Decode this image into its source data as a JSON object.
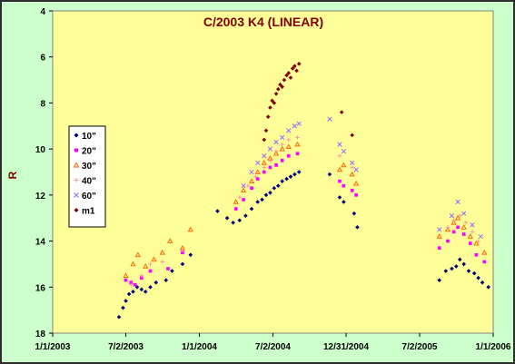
{
  "chart_data": {
    "type": "scatter",
    "title": "C/2003 K4 (LINEAR)",
    "ylabel": "R",
    "xlabel": "",
    "xlim": [
      "2003-01-01",
      "2006-01-01"
    ],
    "ylim": [
      4,
      18
    ],
    "y_inverted": true,
    "x_ticks": [
      {
        "date": "2003-01-01",
        "label": "1/1/2003"
      },
      {
        "date": "2003-07-02",
        "label": "7/2/2003"
      },
      {
        "date": "2004-01-01",
        "label": "1/1/2004"
      },
      {
        "date": "2004-07-02",
        "label": "7/2/2004"
      },
      {
        "date": "2004-12-31",
        "label": "12/31/2004"
      },
      {
        "date": "2005-07-02",
        "label": "7/2/2005"
      },
      {
        "date": "2006-01-01",
        "label": "1/1/2006"
      }
    ],
    "y_ticks": [
      "4",
      "6",
      "8",
      "10",
      "12",
      "14",
      "16",
      "18"
    ],
    "plot_background": "#ffff99",
    "legend_position": "left",
    "series": [
      {
        "name": "10\"",
        "marker": "diamond",
        "color": "#000080",
        "points": [
          [
            "2003-06-15",
            17.3
          ],
          [
            "2003-06-25",
            16.9
          ],
          [
            "2003-07-02",
            16.6
          ],
          [
            "2003-07-10",
            16.3
          ],
          [
            "2003-07-20",
            16.2
          ],
          [
            "2003-07-30",
            16.0
          ],
          [
            "2003-08-10",
            16.1
          ],
          [
            "2003-08-20",
            16.2
          ],
          [
            "2003-09-01",
            16.0
          ],
          [
            "2003-09-15",
            15.8
          ],
          [
            "2003-10-10",
            15.7
          ],
          [
            "2003-10-25",
            15.3
          ],
          [
            "2003-11-20",
            15.0
          ],
          [
            "2003-12-10",
            14.6
          ],
          [
            "2004-02-15",
            12.7
          ],
          [
            "2004-03-10",
            13.0
          ],
          [
            "2004-03-25",
            13.2
          ],
          [
            "2004-04-10",
            13.1
          ],
          [
            "2004-04-25",
            12.9
          ],
          [
            "2004-05-10",
            12.6
          ],
          [
            "2004-05-25",
            12.3
          ],
          [
            "2004-06-05",
            12.2
          ],
          [
            "2004-06-15",
            12.0
          ],
          [
            "2004-06-25",
            11.9
          ],
          [
            "2004-07-05",
            11.7
          ],
          [
            "2004-07-15",
            11.6
          ],
          [
            "2004-07-25",
            11.4
          ],
          [
            "2004-08-05",
            11.3
          ],
          [
            "2004-08-15",
            11.2
          ],
          [
            "2004-08-25",
            11.1
          ],
          [
            "2004-09-05",
            11.0
          ],
          [
            "2004-11-20",
            11.1
          ],
          [
            "2004-12-15",
            12.1
          ],
          [
            "2004-12-25",
            12.3
          ],
          [
            "2005-01-20",
            12.8
          ],
          [
            "2005-01-28",
            13.4
          ],
          [
            "2005-08-20",
            15.7
          ],
          [
            "2005-09-05",
            15.3
          ],
          [
            "2005-09-20",
            15.2
          ],
          [
            "2005-10-01",
            15.1
          ],
          [
            "2005-10-10",
            14.8
          ],
          [
            "2005-10-20",
            15.0
          ],
          [
            "2005-11-01",
            15.3
          ],
          [
            "2005-11-15",
            15.4
          ],
          [
            "2005-11-25",
            15.6
          ],
          [
            "2005-12-05",
            15.8
          ],
          [
            "2005-12-20",
            16.0
          ]
        ]
      },
      {
        "name": "20\"",
        "marker": "square",
        "color": "#ff00ff",
        "points": [
          [
            "2003-07-02",
            15.7
          ],
          [
            "2003-07-15",
            15.8
          ],
          [
            "2003-07-25",
            15.9
          ],
          [
            "2003-08-10",
            15.6
          ],
          [
            "2003-09-01",
            15.3
          ],
          [
            "2003-10-15",
            15.2
          ],
          [
            "2003-11-20",
            14.5
          ],
          [
            "2004-04-01",
            12.6
          ],
          [
            "2004-04-20",
            12.2
          ],
          [
            "2004-05-10",
            11.7
          ],
          [
            "2004-05-25",
            11.3
          ],
          [
            "2004-06-10",
            11.0
          ],
          [
            "2004-06-25",
            10.8
          ],
          [
            "2004-07-10",
            10.7
          ],
          [
            "2004-07-25",
            10.5
          ],
          [
            "2004-08-10",
            10.3
          ],
          [
            "2004-09-01",
            10.2
          ],
          [
            "2004-12-15",
            11.4
          ],
          [
            "2004-12-25",
            11.6
          ],
          [
            "2005-01-15",
            11.8
          ],
          [
            "2005-01-25",
            12.0
          ],
          [
            "2005-08-20",
            14.3
          ],
          [
            "2005-09-10",
            14.0
          ],
          [
            "2005-09-25",
            13.6
          ],
          [
            "2005-10-05",
            13.4
          ],
          [
            "2005-10-20",
            13.7
          ],
          [
            "2005-11-05",
            14.1
          ],
          [
            "2005-11-20",
            14.6
          ],
          [
            "2005-12-10",
            14.9
          ]
        ]
      },
      {
        "name": "30\"",
        "marker": "triangle",
        "color": "#ff6600",
        "points": [
          [
            "2003-07-02",
            15.5
          ],
          [
            "2003-07-20",
            15.0
          ],
          [
            "2003-08-01",
            14.6
          ],
          [
            "2003-08-20",
            15.1
          ],
          [
            "2003-09-10",
            14.8
          ],
          [
            "2003-10-01",
            14.5
          ],
          [
            "2003-10-20",
            14.0
          ],
          [
            "2003-11-20",
            14.3
          ],
          [
            "2003-12-10",
            13.5
          ],
          [
            "2004-04-01",
            12.3
          ],
          [
            "2004-04-20",
            11.8
          ],
          [
            "2004-05-10",
            11.4
          ],
          [
            "2004-05-25",
            11.0
          ],
          [
            "2004-06-10",
            10.6
          ],
          [
            "2004-06-25",
            10.4
          ],
          [
            "2004-07-10",
            10.2
          ],
          [
            "2004-07-25",
            10.0
          ],
          [
            "2004-08-10",
            9.9
          ],
          [
            "2004-09-01",
            9.8
          ],
          [
            "2004-12-15",
            10.9
          ],
          [
            "2004-12-25",
            10.7
          ],
          [
            "2005-01-15",
            11.1
          ],
          [
            "2005-01-25",
            11.5
          ],
          [
            "2005-08-20",
            13.8
          ],
          [
            "2005-09-10",
            13.5
          ],
          [
            "2005-09-25",
            13.2
          ],
          [
            "2005-10-05",
            13.0
          ],
          [
            "2005-10-20",
            13.4
          ],
          [
            "2005-11-05",
            13.8
          ],
          [
            "2005-11-20",
            14.1
          ],
          [
            "2005-12-10",
            14.5
          ]
        ]
      },
      {
        "name": "40\"",
        "marker": "cross",
        "color": "#ff9999",
        "points": [
          [
            "2003-07-15",
            15.9
          ],
          [
            "2003-08-10",
            15.5
          ],
          [
            "2003-09-01",
            15.0
          ],
          [
            "2003-10-01",
            14.9
          ],
          [
            "2003-11-20",
            14.4
          ],
          [
            "2004-04-10",
            12.1
          ],
          [
            "2004-05-01",
            11.6
          ],
          [
            "2004-05-20",
            11.2
          ],
          [
            "2004-06-10",
            10.8
          ],
          [
            "2004-06-25",
            10.5
          ],
          [
            "2004-07-10",
            10.1
          ],
          [
            "2004-07-25",
            9.8
          ],
          [
            "2004-08-10",
            9.6
          ],
          [
            "2004-09-01",
            9.5
          ],
          [
            "2004-12-15",
            10.3
          ],
          [
            "2005-01-15",
            10.8
          ],
          [
            "2005-09-10",
            13.4
          ],
          [
            "2005-09-25",
            13.1
          ],
          [
            "2005-10-10",
            12.9
          ],
          [
            "2005-10-25",
            13.2
          ],
          [
            "2005-11-10",
            13.6
          ],
          [
            "2005-11-25",
            14.0
          ]
        ]
      },
      {
        "name": "60\"",
        "marker": "x",
        "color": "#9966ff",
        "points": [
          [
            "2004-04-20",
            11.6
          ],
          [
            "2004-05-10",
            11.0
          ],
          [
            "2004-05-25",
            10.6
          ],
          [
            "2004-06-10",
            10.3
          ],
          [
            "2004-06-25",
            10.0
          ],
          [
            "2004-07-10",
            9.7
          ],
          [
            "2004-07-25",
            9.5
          ],
          [
            "2004-08-10",
            9.2
          ],
          [
            "2004-08-25",
            9.0
          ],
          [
            "2004-09-05",
            8.9
          ],
          [
            "2004-11-20",
            8.7
          ],
          [
            "2004-12-15",
            9.8
          ],
          [
            "2004-12-25",
            10.1
          ],
          [
            "2005-01-15",
            10.6
          ],
          [
            "2005-01-25",
            10.9
          ],
          [
            "2005-08-20",
            13.5
          ],
          [
            "2005-09-20",
            12.9
          ],
          [
            "2005-10-05",
            12.3
          ],
          [
            "2005-10-20",
            12.8
          ],
          [
            "2005-11-10",
            13.3
          ],
          [
            "2005-12-01",
            13.8
          ]
        ]
      },
      {
        "name": "m1",
        "marker": "diamond",
        "color": "#800000",
        "points": [
          [
            "2004-06-20",
            8.6
          ],
          [
            "2004-06-25",
            8.2
          ],
          [
            "2004-06-30",
            7.9
          ],
          [
            "2004-07-05",
            8.0
          ],
          [
            "2004-07-10",
            7.6
          ],
          [
            "2004-07-15",
            7.4
          ],
          [
            "2004-07-20",
            7.2
          ],
          [
            "2004-07-25",
            7.3
          ],
          [
            "2004-07-30",
            7.0
          ],
          [
            "2004-08-05",
            6.8
          ],
          [
            "2004-08-10",
            6.7
          ],
          [
            "2004-08-15",
            6.9
          ],
          [
            "2004-08-20",
            6.5
          ],
          [
            "2004-08-25",
            6.4
          ],
          [
            "2004-08-30",
            6.6
          ],
          [
            "2004-09-05",
            6.3
          ],
          [
            "2004-06-15",
            9.2
          ],
          [
            "2004-06-10",
            9.6
          ],
          [
            "2004-12-20",
            8.4
          ],
          [
            "2005-01-15",
            9.4
          ]
        ]
      }
    ]
  }
}
